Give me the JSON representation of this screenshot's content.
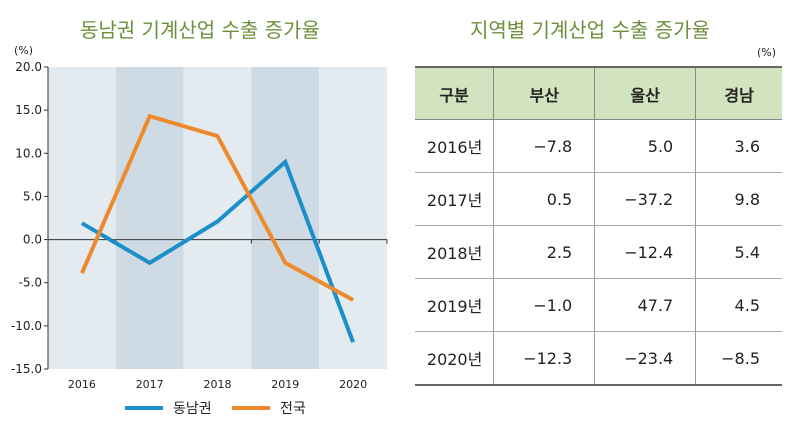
{
  "chart_data": {
    "type": "line",
    "title": "동남권 기계산업 수출 증가율",
    "ylabel": "(%)",
    "categories": [
      "2016",
      "2017",
      "2018",
      "2019",
      "2020"
    ],
    "ylim": [
      -15,
      20
    ],
    "yticks": [
      "20.0",
      "15.0",
      "10.0",
      "5.0",
      "0.0",
      "-5.0",
      "-10.0",
      "-15.0"
    ],
    "series": [
      {
        "name": "동남권",
        "color": "#1a8fc9",
        "values": [
          1.9,
          -2.7,
          2.1,
          9.0,
          -11.9
        ]
      },
      {
        "name": "전국",
        "color": "#ee8a2e",
        "values": [
          -3.9,
          14.3,
          12.0,
          -2.7,
          -7.0
        ]
      }
    ],
    "legend": "bottom"
  },
  "table": {
    "title": "지역별 기계산업 수출 증가율",
    "unit": "(%)",
    "headers": [
      "구분",
      "부산",
      "울산",
      "경남"
    ],
    "rows": [
      [
        "2016년",
        "−7.8",
        "5.0",
        "3.6"
      ],
      [
        "2017년",
        "0.5",
        "−37.2",
        "9.8"
      ],
      [
        "2018년",
        "2.5",
        "−12.4",
        "5.4"
      ],
      [
        "2019년",
        "−1.0",
        "47.7",
        "4.5"
      ],
      [
        "2020년",
        "−12.3",
        "−23.4",
        "−8.5"
      ]
    ]
  }
}
